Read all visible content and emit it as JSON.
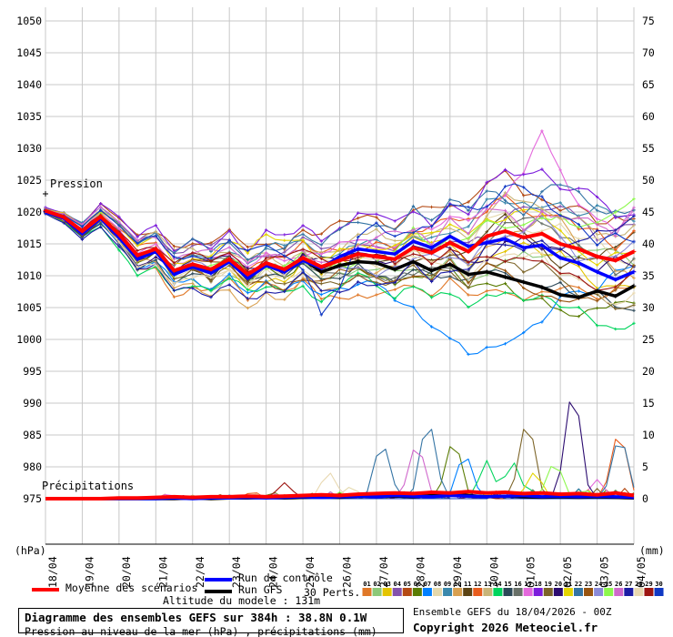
{
  "header": {
    "pressure_label": "Pression",
    "precip_label": "Précipitations"
  },
  "legend": {
    "mean": {
      "label": "Moyenne des scénarios",
      "color": "#ff0000"
    },
    "control": {
      "label": "Run de contrôle",
      "color": "#0000ff"
    },
    "gfs": {
      "label": "Run GFS",
      "color": "#000000"
    },
    "perts_label": "30 Perts.",
    "altitude_note": "Altitude du modele : 131m"
  },
  "footer": {
    "title_line1": "Diagramme des ensembles GEFS sur 384h : 38.8N 0.1W",
    "title_line2": "Pression au niveau de la mer (hPa) , précipitations (mm)",
    "run_info": "Ensemble GEFS du 18/04/2026 - 00Z",
    "copyright": "Copyright 2026 Meteociel.fr"
  },
  "chart_data": {
    "type": "line",
    "title": "Diagramme des ensembles GEFS sur 384h : 38.8N 0.1W",
    "hours_span": 384,
    "step_hours_series": 12,
    "x_tick_labels": [
      "18/04",
      "19/04",
      "20/04",
      "21/04",
      "22/04",
      "23/04",
      "24/04",
      "25/04",
      "26/04",
      "27/04",
      "28/04",
      "29/04",
      "30/04",
      "01/05",
      "02/05",
      "03/05",
      "04/05"
    ],
    "left_axis": {
      "label": "(hPa)",
      "min": 975,
      "max": 1050,
      "step": 5
    },
    "right_axis": {
      "label": "(mm)",
      "min": 0,
      "max": 75,
      "step": 5
    },
    "grid_color": "#c8c8c8",
    "axis_color": "#000000",
    "pressure": {
      "mean": [
        1020.2,
        1019.2,
        1017.0,
        1019.3,
        1016.5,
        1013.2,
        1014.2,
        1010.8,
        1011.8,
        1011.0,
        1012.6,
        1010.2,
        1012.0,
        1011.0,
        1012.8,
        1011.4,
        1012.4,
        1013.4,
        1013.0,
        1012.6,
        1014.4,
        1013.6,
        1015.2,
        1013.8,
        1016.2,
        1017.0,
        1016.0,
        1016.6,
        1015.0,
        1014.2,
        1013.0,
        1012.4,
        1013.8
      ],
      "control": [
        1020.0,
        1019.0,
        1016.6,
        1019.0,
        1016.0,
        1012.6,
        1013.8,
        1010.2,
        1011.4,
        1010.4,
        1012.2,
        1009.6,
        1011.6,
        1010.6,
        1012.4,
        1011.2,
        1013.0,
        1014.2,
        1013.8,
        1013.4,
        1015.4,
        1014.4,
        1016.2,
        1014.6,
        1015.2,
        1015.8,
        1014.4,
        1014.8,
        1012.8,
        1012.0,
        1010.6,
        1009.4,
        1010.6
      ],
      "gfs": [
        1020.1,
        1019.1,
        1016.8,
        1019.1,
        1016.2,
        1013.0,
        1014.0,
        1010.5,
        1011.6,
        1010.7,
        1012.4,
        1009.9,
        1011.8,
        1010.8,
        1012.6,
        1010.6,
        1011.6,
        1012.2,
        1012.0,
        1011.0,
        1012.2,
        1010.8,
        1011.8,
        1010.2,
        1010.6,
        1009.8,
        1009.0,
        1008.2,
        1007.0,
        1006.6,
        1007.6,
        1006.8,
        1008.4
      ],
      "spread": [
        0.5,
        0.8,
        1.3,
        1.8,
        2.4,
        3.0,
        3.4,
        3.8,
        4.0,
        4.2,
        4.4,
        4.6,
        4.8,
        5.0,
        5.0,
        5.2,
        5.4,
        5.6,
        5.8,
        6.0,
        6.4,
        6.8,
        7.2,
        7.6,
        8.0,
        8.4,
        8.6,
        8.8,
        9.0,
        9.2,
        9.4,
        9.6,
        9.8
      ]
    },
    "precip": {
      "mean": [
        0,
        0,
        0,
        0,
        0.1,
        0.1,
        0.2,
        0.3,
        0.2,
        0.3,
        0.3,
        0.4,
        0.3,
        0.4,
        0.5,
        0.6,
        0.5,
        0.7,
        0.8,
        0.9,
        0.8,
        1.0,
        0.9,
        1.1,
        0.9,
        1.0,
        0.8,
        0.9,
        0.7,
        0.8,
        0.6,
        0.9,
        0.5
      ],
      "control": [
        0,
        0,
        0,
        0,
        0,
        0,
        0,
        0.1,
        0,
        0.1,
        0.1,
        0.2,
        0.1,
        0.2,
        0.3,
        0.2,
        0.3,
        0.4,
        0.3,
        0.5,
        0.4,
        0.3,
        0.5,
        0.4,
        0.3,
        0.4,
        0.5,
        0.3,
        0.4,
        0.3,
        0.4,
        0.3,
        0.2
      ],
      "gfs": [
        0,
        0,
        0,
        0,
        0,
        0,
        0,
        0,
        0.1,
        0,
        0.1,
        0.1,
        0.2,
        0.1,
        0.2,
        0.3,
        0.2,
        0.4,
        0.3,
        0.4,
        0.3,
        0.5,
        0.8,
        0.5,
        0.3,
        0.4,
        0.3,
        0.2,
        0.3,
        0.2,
        0.3,
        0.2,
        0.1
      ]
    },
    "members": [
      {
        "id": "01",
        "color": "#E07828"
      },
      {
        "id": "02",
        "color": "#8CC878"
      },
      {
        "id": "03",
        "color": "#E4C400"
      },
      {
        "id": "04",
        "color": "#8452AC"
      },
      {
        "id": "05",
        "color": "#B44A14"
      },
      {
        "id": "06",
        "color": "#5A7C04"
      },
      {
        "id": "07",
        "color": "#0080FF"
      },
      {
        "id": "08",
        "color": "#E4D8AC"
      },
      {
        "id": "09",
        "color": "#3A88AC"
      },
      {
        "id": "10",
        "color": "#D8A050"
      },
      {
        "id": "11",
        "color": "#5C4414"
      },
      {
        "id": "12",
        "color": "#E85C1C"
      },
      {
        "id": "13",
        "color": "#C8B478"
      },
      {
        "id": "14",
        "color": "#00D45C"
      },
      {
        "id": "15",
        "color": "#2C4858"
      },
      {
        "id": "16",
        "color": "#687068"
      },
      {
        "id": "17",
        "color": "#E468DC"
      },
      {
        "id": "18",
        "color": "#7C1CDC"
      },
      {
        "id": "19",
        "color": "#7C6428"
      },
      {
        "id": "20",
        "color": "#2C0C70"
      },
      {
        "id": "21",
        "color": "#E4D400"
      },
      {
        "id": "22",
        "color": "#3474A4"
      },
      {
        "id": "23",
        "color": "#985410"
      },
      {
        "id": "24",
        "color": "#8A8AD8"
      },
      {
        "id": "25",
        "color": "#8CF84C"
      },
      {
        "id": "26",
        "color": "#D068CC"
      },
      {
        "id": "27",
        "color": "#1C1CA4"
      },
      {
        "id": "28",
        "color": "#E8D8B0"
      },
      {
        "id": "29",
        "color": "#9C1410"
      },
      {
        "id": "30",
        "color": "#1038C4"
      }
    ],
    "pressure_anomalies": [
      {
        "member": 7,
        "day": 11.8,
        "dp": -13,
        "width": 2.0
      },
      {
        "member": 30,
        "day": 7.6,
        "dp": -12,
        "width": 0.7
      },
      {
        "member": 17,
        "day": 13.6,
        "dp": 11,
        "width": 0.9
      },
      {
        "member": 27,
        "day": 15.9,
        "dp": 11,
        "width": 1.2
      },
      {
        "member": 10,
        "day": 13.0,
        "dp": 9,
        "width": 2.2
      }
    ],
    "precip_spikes": [
      {
        "member": 29,
        "day": 6.5,
        "mm": 2.5
      },
      {
        "member": 28,
        "day": 7.7,
        "mm": 4.5
      },
      {
        "member": 8,
        "day": 8.3,
        "mm": 2.0
      },
      {
        "member": 22,
        "day": 9.15,
        "mm": 10.0
      },
      {
        "member": 26,
        "day": 10.1,
        "mm": 9.8
      },
      {
        "member": 22,
        "day": 10.4,
        "mm": 14.0
      },
      {
        "member": 6,
        "day": 11.1,
        "mm": 10.5
      },
      {
        "member": 7,
        "day": 11.4,
        "mm": 8.0
      },
      {
        "member": 14,
        "day": 12.0,
        "mm": 6.0
      },
      {
        "member": 14,
        "day": 12.7,
        "mm": 6.3
      },
      {
        "member": 19,
        "day": 13.1,
        "mm": 14.0
      },
      {
        "member": 21,
        "day": 13.3,
        "mm": 4.5
      },
      {
        "member": 25,
        "day": 13.85,
        "mm": 6.5
      },
      {
        "member": 20,
        "day": 14.35,
        "mm": 19.5
      },
      {
        "member": 17,
        "day": 15.0,
        "mm": 3.0
      },
      {
        "member": 12,
        "day": 15.6,
        "mm": 12.0
      },
      {
        "member": 22,
        "day": 15.62,
        "mm": 11.3
      }
    ]
  }
}
